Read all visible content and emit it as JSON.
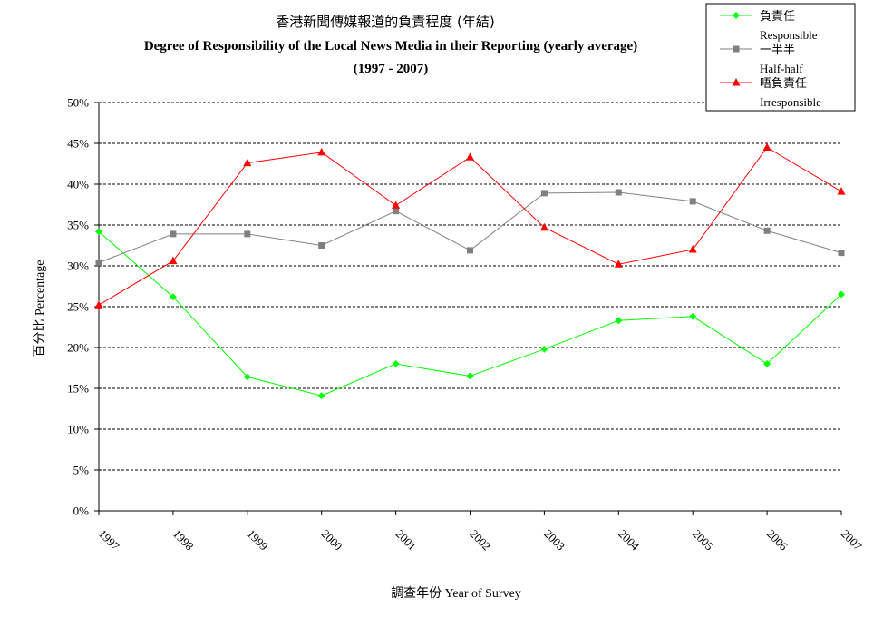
{
  "chart_data": {
    "type": "line",
    "title_zh": "香港新聞傳媒報道的負責程度 (年結)",
    "title": "Degree of Responsibility of the Local News Media in their Reporting (yearly average)",
    "subtitle": "(1997 - 2007)",
    "ylabel": "百分比 Percentage",
    "xlabel": "調查年份 Year of Survey",
    "ylim": [
      0,
      50
    ],
    "yticks": [
      "0%",
      "5%",
      "10%",
      "15%",
      "20%",
      "25%",
      "30%",
      "35%",
      "40%",
      "45%",
      "50%"
    ],
    "categories": [
      "1997",
      "1998",
      "1999",
      "2000",
      "2001",
      "2002",
      "2003",
      "2004",
      "2005",
      "2006",
      "2007"
    ],
    "grid": true,
    "legend_position": "top-right",
    "series": [
      {
        "name_zh": "負責任",
        "name": "Responsible",
        "color": "#00ff00",
        "marker": "diamond",
        "values": [
          34.2,
          26.2,
          16.4,
          14.1,
          18.0,
          16.5,
          19.8,
          23.3,
          23.8,
          18.0,
          26.5
        ]
      },
      {
        "name_zh": "一半半",
        "name": "Half-half",
        "color": "#808080",
        "marker": "square",
        "values": [
          30.4,
          33.9,
          33.9,
          32.5,
          36.7,
          31.9,
          38.9,
          39.0,
          37.9,
          34.3,
          31.6
        ]
      },
      {
        "name_zh": "唔負責任",
        "name": "Irresponsible",
        "color": "#ff0000",
        "marker": "triangle",
        "values": [
          25.2,
          30.6,
          42.6,
          43.9,
          37.4,
          43.3,
          34.7,
          30.2,
          32.0,
          44.5,
          39.1
        ]
      }
    ]
  }
}
